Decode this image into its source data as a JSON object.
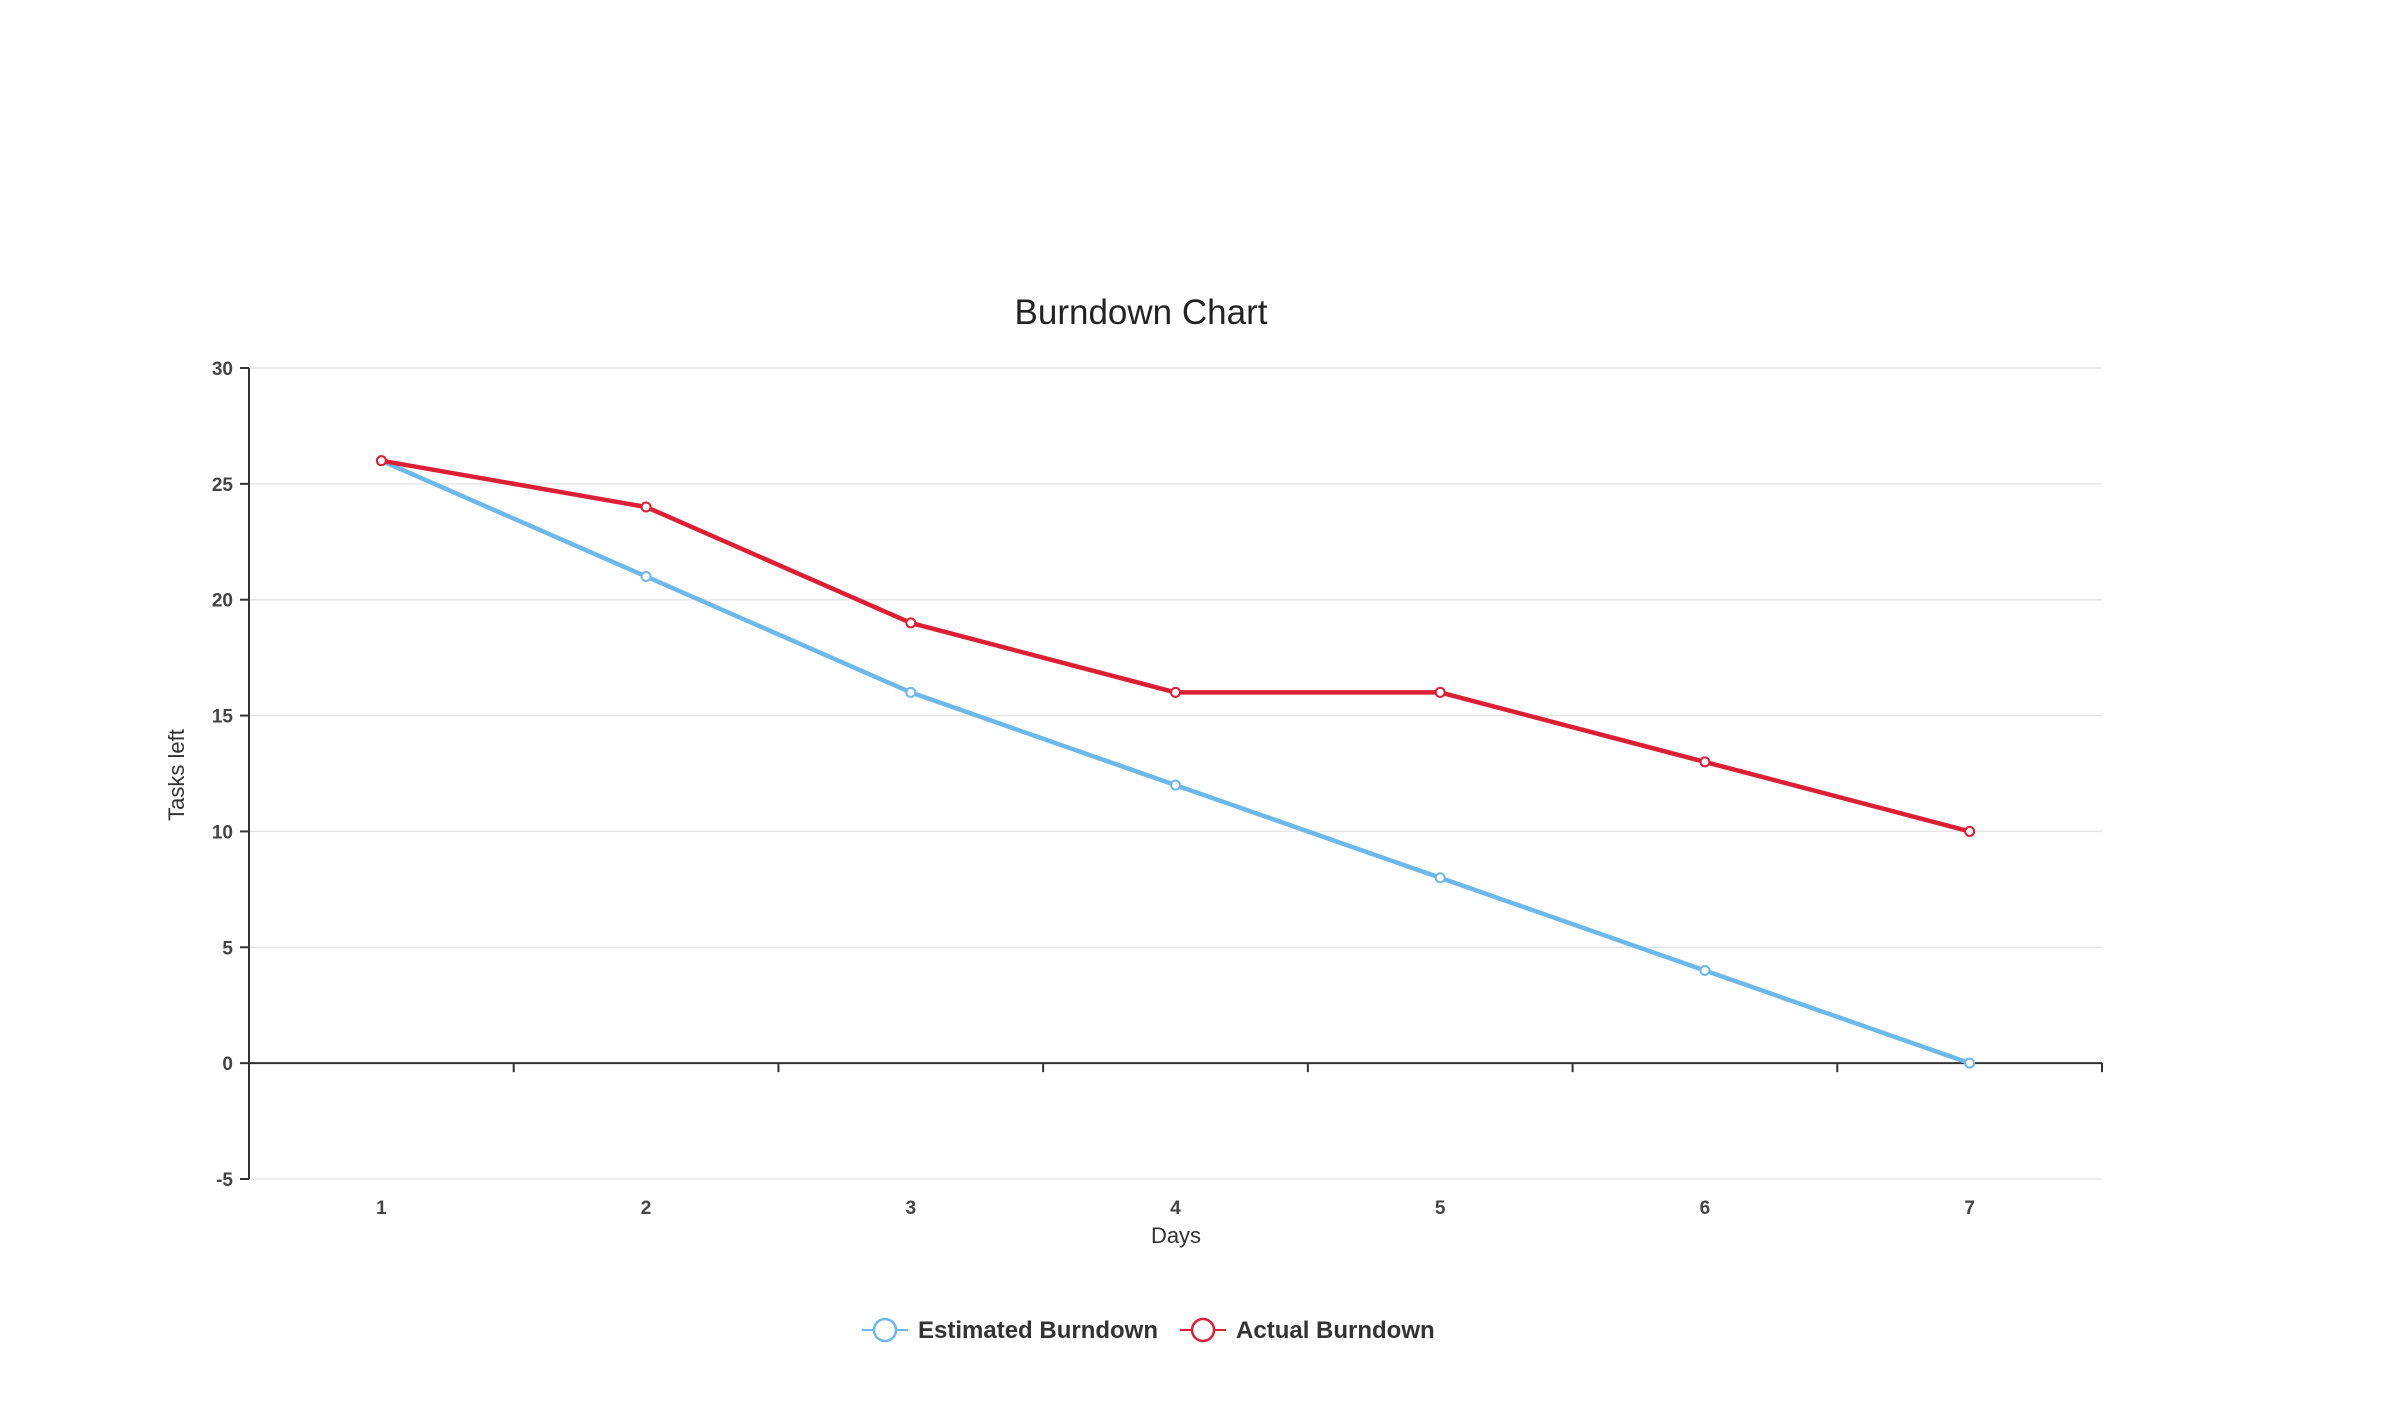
{
  "chart_data": {
    "type": "line",
    "title": "Burndown Chart",
    "xlabel": "Days",
    "ylabel": "Tasks left",
    "categories": [
      "1",
      "2",
      "3",
      "4",
      "5",
      "6",
      "7"
    ],
    "y_ticks": [
      "-5",
      "0",
      "5",
      "10",
      "15",
      "20",
      "25",
      "30"
    ],
    "ylim": [
      -5,
      30
    ],
    "grid": true,
    "legend_position": "bottom-center",
    "series": [
      {
        "name": "Estimated Burndown",
        "color": "#6cb8ea",
        "values": [
          26,
          21,
          16,
          12,
          8,
          4,
          0
        ]
      },
      {
        "name": "Actual Burndown",
        "color": "#dc1f34",
        "values": [
          26,
          24,
          19,
          16,
          16,
          13,
          10
        ]
      }
    ]
  }
}
